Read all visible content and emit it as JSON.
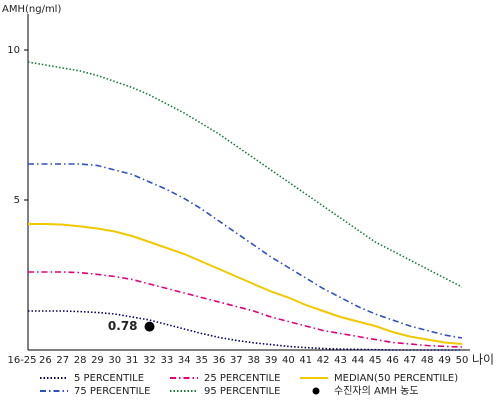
{
  "chart_data": {
    "type": "line",
    "y_label": "AMH(ng/ml)",
    "x_label": "나이",
    "categories": [
      "16-25",
      "26",
      "27",
      "28",
      "29",
      "30",
      "31",
      "32",
      "33",
      "34",
      "35",
      "36",
      "37",
      "38",
      "39",
      "40",
      "41",
      "42",
      "43",
      "44",
      "45",
      "46",
      "47",
      "48",
      "49",
      "50"
    ],
    "ylim": [
      0,
      11.2
    ],
    "yticks": [
      5,
      10
    ],
    "grid": false,
    "series": [
      {
        "name": "5 PERCENTILE",
        "color": "#000066",
        "style": "dotted",
        "values": [
          1.3,
          1.3,
          1.3,
          1.28,
          1.25,
          1.2,
          1.1,
          1.0,
          0.85,
          0.7,
          0.55,
          0.42,
          0.32,
          0.24,
          0.18,
          0.12,
          0.08,
          0.05,
          0.03,
          0.02,
          0.01,
          0,
          0,
          0,
          0,
          0
        ]
      },
      {
        "name": "25 PERCENTILE",
        "color": "#e0007a",
        "style": "dashdot",
        "values": [
          2.6,
          2.6,
          2.6,
          2.58,
          2.52,
          2.45,
          2.35,
          2.2,
          2.05,
          1.9,
          1.75,
          1.6,
          1.45,
          1.3,
          1.1,
          0.95,
          0.8,
          0.65,
          0.55,
          0.45,
          0.35,
          0.25,
          0.2,
          0.15,
          0.12,
          0.1
        ]
      },
      {
        "name": "MEDIAN(50 PERCENTILE)",
        "color": "#f2c800",
        "style": "solid",
        "values": [
          4.2,
          4.2,
          4.18,
          4.12,
          4.05,
          3.95,
          3.8,
          3.6,
          3.4,
          3.2,
          2.95,
          2.7,
          2.45,
          2.2,
          1.95,
          1.75,
          1.5,
          1.3,
          1.1,
          0.95,
          0.8,
          0.6,
          0.45,
          0.35,
          0.25,
          0.2
        ]
      },
      {
        "name": "75 PERCENTILE",
        "color": "#3050c0",
        "style": "dashdot",
        "values": [
          6.2,
          6.2,
          6.2,
          6.2,
          6.15,
          6.0,
          5.85,
          5.6,
          5.35,
          5.05,
          4.7,
          4.3,
          3.9,
          3.5,
          3.1,
          2.75,
          2.4,
          2.05,
          1.75,
          1.45,
          1.2,
          1.0,
          0.8,
          0.65,
          0.5,
          0.4
        ]
      },
      {
        "name": "95 PERCENTILE",
        "color": "#1a7a3a",
        "style": "dotted",
        "values": [
          9.6,
          9.5,
          9.4,
          9.3,
          9.15,
          8.95,
          8.75,
          8.5,
          8.2,
          7.9,
          7.55,
          7.2,
          6.8,
          6.4,
          6.0,
          5.6,
          5.2,
          4.8,
          4.4,
          4.0,
          3.6,
          3.3,
          3.0,
          2.7,
          2.4,
          2.1
        ]
      }
    ],
    "patient": {
      "name": "수진자의 AMH 농도",
      "x": "32",
      "value": 0.78,
      "color": "#000000"
    }
  }
}
